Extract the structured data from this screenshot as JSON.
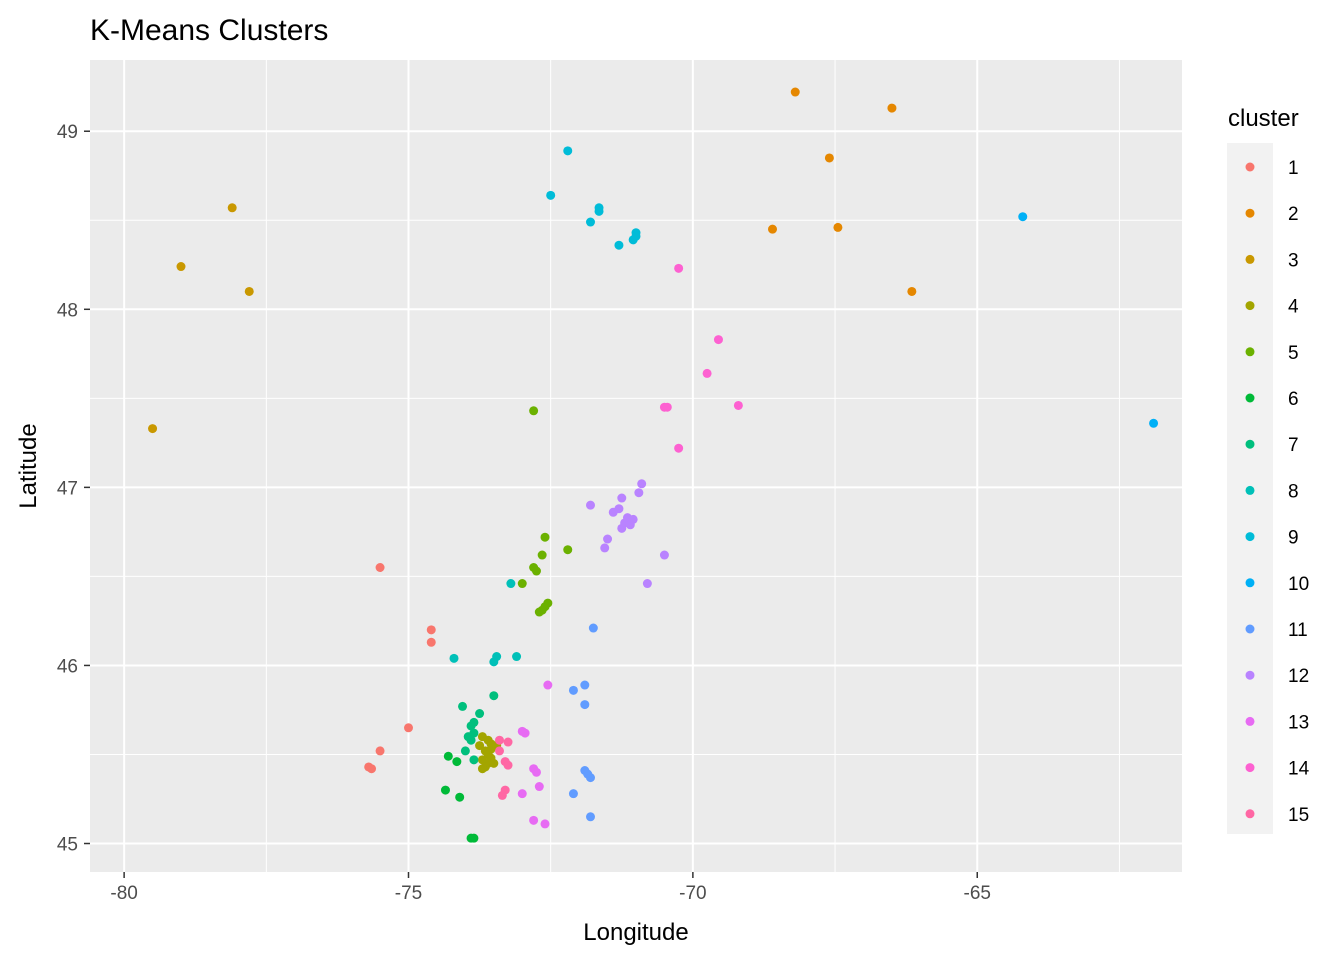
{
  "chart_data": {
    "type": "scatter",
    "title": "K-Means Clusters",
    "xlabel": "Longitude",
    "ylabel": "Latitude",
    "xlim": [
      -80.6,
      -61.4
    ],
    "ylim": [
      44.84,
      49.4
    ],
    "x_ticks": [
      -80,
      -75,
      -70,
      -65
    ],
    "x_tick_labels": [
      "-80",
      "-75",
      "-70",
      "-65"
    ],
    "y_ticks": [
      45,
      46,
      47,
      48,
      49
    ],
    "y_tick_labels": [
      "45",
      "46",
      "47",
      "48",
      "49"
    ],
    "grid": true,
    "legend": {
      "title": "cluster",
      "position": "right"
    },
    "series": [
      {
        "name": "1",
        "color": "#F8766D",
        "points": [
          [
            -75.5,
            46.55
          ],
          [
            -74.6,
            46.2
          ],
          [
            -74.6,
            46.13
          ],
          [
            -75.0,
            45.65
          ],
          [
            -75.5,
            45.52
          ],
          [
            -75.7,
            45.43
          ],
          [
            -75.65,
            45.42
          ]
        ]
      },
      {
        "name": "2",
        "color": "#E58700",
        "points": [
          [
            -68.2,
            49.22
          ],
          [
            -66.5,
            49.13
          ],
          [
            -67.6,
            48.85
          ],
          [
            -68.6,
            48.45
          ],
          [
            -67.45,
            48.46
          ],
          [
            -66.15,
            48.1
          ]
        ]
      },
      {
        "name": "3",
        "color": "#C99800",
        "points": [
          [
            -78.1,
            48.57
          ],
          [
            -79.0,
            48.24
          ],
          [
            -77.8,
            48.1
          ],
          [
            -79.5,
            47.33
          ]
        ]
      },
      {
        "name": "4",
        "color": "#A3A500",
        "points": [
          [
            -73.7,
            45.6
          ],
          [
            -73.6,
            45.58
          ],
          [
            -73.55,
            45.56
          ],
          [
            -73.5,
            45.55
          ],
          [
            -73.75,
            45.55
          ],
          [
            -73.65,
            45.52
          ],
          [
            -73.6,
            45.5
          ],
          [
            -73.55,
            45.48
          ],
          [
            -73.7,
            45.47
          ],
          [
            -73.6,
            45.45
          ],
          [
            -73.5,
            45.45
          ],
          [
            -73.65,
            45.43
          ],
          [
            -73.7,
            45.42
          ],
          [
            -73.45,
            45.55
          ],
          [
            -73.55,
            45.53
          ]
        ]
      },
      {
        "name": "5",
        "color": "#6BB100",
        "points": [
          [
            -72.8,
            47.43
          ],
          [
            -72.6,
            46.72
          ],
          [
            -72.2,
            46.65
          ],
          [
            -72.65,
            46.62
          ],
          [
            -72.8,
            46.55
          ],
          [
            -72.75,
            46.53
          ],
          [
            -73.0,
            46.46
          ],
          [
            -72.55,
            46.35
          ],
          [
            -72.6,
            46.33
          ],
          [
            -72.65,
            46.31
          ],
          [
            -72.7,
            46.3
          ]
        ]
      },
      {
        "name": "6",
        "color": "#00BA38",
        "points": [
          [
            -74.3,
            45.49
          ],
          [
            -74.15,
            45.46
          ],
          [
            -74.35,
            45.3
          ],
          [
            -74.1,
            45.26
          ],
          [
            -73.9,
            45.03
          ],
          [
            -73.85,
            45.03
          ]
        ]
      },
      {
        "name": "7",
        "color": "#00BF7D",
        "points": [
          [
            -74.05,
            45.77
          ],
          [
            -73.75,
            45.73
          ],
          [
            -73.85,
            45.68
          ],
          [
            -73.9,
            45.66
          ],
          [
            -73.85,
            45.62
          ],
          [
            -73.95,
            45.6
          ],
          [
            -73.9,
            45.58
          ],
          [
            -74.0,
            45.52
          ],
          [
            -73.85,
            45.47
          ],
          [
            -73.5,
            45.83
          ]
        ]
      },
      {
        "name": "8",
        "color": "#00C0B8",
        "points": [
          [
            -73.2,
            46.46
          ],
          [
            -74.2,
            46.04
          ],
          [
            -73.45,
            46.05
          ],
          [
            -73.5,
            46.02
          ],
          [
            -73.1,
            46.05
          ]
        ]
      },
      {
        "name": "9",
        "color": "#00BCD8",
        "points": [
          [
            -72.2,
            48.89
          ],
          [
            -72.5,
            48.64
          ],
          [
            -71.65,
            48.57
          ],
          [
            -71.65,
            48.55
          ],
          [
            -71.8,
            48.49
          ],
          [
            -71.0,
            48.43
          ],
          [
            -71.0,
            48.41
          ],
          [
            -71.05,
            48.39
          ],
          [
            -71.3,
            48.36
          ]
        ]
      },
      {
        "name": "10",
        "color": "#00B0F6",
        "points": [
          [
            -64.2,
            48.52
          ],
          [
            -61.9,
            47.36
          ]
        ]
      },
      {
        "name": "11",
        "color": "#619CFF",
        "points": [
          [
            -71.75,
            46.21
          ],
          [
            -71.9,
            45.89
          ],
          [
            -72.1,
            45.86
          ],
          [
            -71.9,
            45.78
          ],
          [
            -71.9,
            45.41
          ],
          [
            -71.85,
            45.39
          ],
          [
            -71.8,
            45.37
          ],
          [
            -72.1,
            45.28
          ],
          [
            -71.8,
            45.15
          ]
        ]
      },
      {
        "name": "12",
        "color": "#B983FF",
        "points": [
          [
            -71.8,
            46.9
          ],
          [
            -70.9,
            47.02
          ],
          [
            -71.25,
            46.94
          ],
          [
            -70.95,
            46.97
          ],
          [
            -71.3,
            46.88
          ],
          [
            -71.4,
            46.86
          ],
          [
            -71.15,
            46.83
          ],
          [
            -71.05,
            46.82
          ],
          [
            -71.2,
            46.8
          ],
          [
            -71.1,
            46.79
          ],
          [
            -71.25,
            46.77
          ],
          [
            -71.5,
            46.71
          ],
          [
            -71.55,
            46.66
          ],
          [
            -70.5,
            46.62
          ],
          [
            -70.8,
            46.46
          ]
        ]
      },
      {
        "name": "13",
        "color": "#E76BF3",
        "points": [
          [
            -72.55,
            45.89
          ],
          [
            -73.0,
            45.63
          ],
          [
            -72.95,
            45.62
          ],
          [
            -72.8,
            45.42
          ],
          [
            -72.75,
            45.4
          ],
          [
            -72.7,
            45.32
          ],
          [
            -73.0,
            45.28
          ],
          [
            -72.8,
            45.13
          ],
          [
            -72.6,
            45.11
          ]
        ]
      },
      {
        "name": "14",
        "color": "#FD61D1",
        "points": [
          [
            -70.25,
            48.23
          ],
          [
            -69.55,
            47.83
          ],
          [
            -69.75,
            47.64
          ],
          [
            -70.5,
            47.45
          ],
          [
            -70.45,
            47.45
          ],
          [
            -69.2,
            47.46
          ],
          [
            -70.25,
            47.22
          ]
        ]
      },
      {
        "name": "15",
        "color": "#FF67A4",
        "points": [
          [
            -73.4,
            45.58
          ],
          [
            -73.25,
            45.57
          ],
          [
            -73.4,
            45.52
          ],
          [
            -73.3,
            45.46
          ],
          [
            -73.25,
            45.44
          ],
          [
            -73.3,
            45.3
          ],
          [
            -73.35,
            45.27
          ]
        ]
      }
    ]
  }
}
